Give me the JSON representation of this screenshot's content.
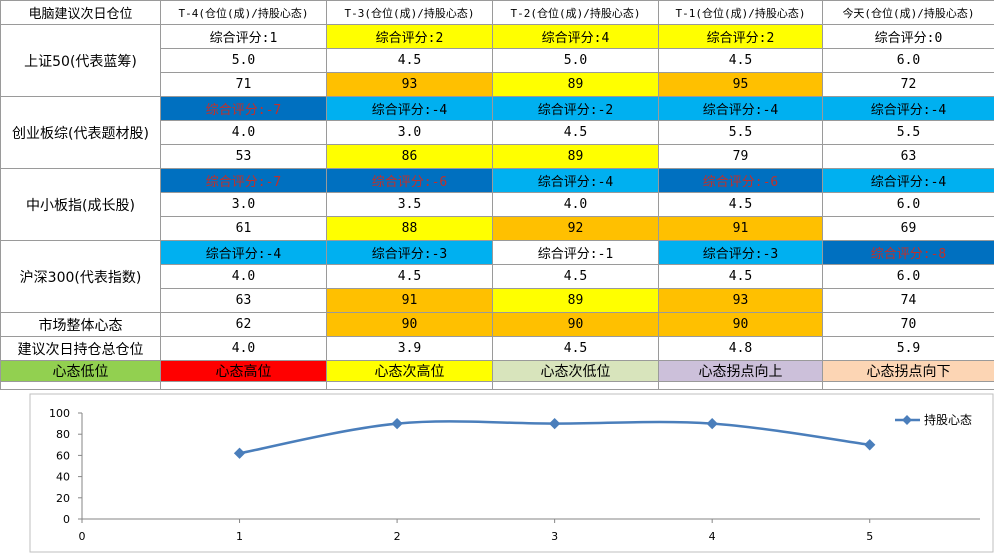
{
  "table": {
    "corner": "电脑建议次日仓位",
    "headers": [
      "T-4(仓位(成)/持股心态)",
      "T-3(仓位(成)/持股心态)",
      "T-2(仓位(成)/持股心态)",
      "T-1(仓位(成)/持股心态)",
      "今天(仓位(成)/持股心态)"
    ],
    "groups": [
      {
        "label": "上证50(代表蓝筹)",
        "score": [
          "综合评分:1",
          "综合评分:2",
          "综合评分:4",
          "综合评分:2",
          "综合评分:0"
        ],
        "score_bg": [
          "#ffffff",
          "#ffff00",
          "#ffff00",
          "#ffff00",
          "#ffffff"
        ],
        "score_color": [
          "#000000",
          "#000000",
          "#000000",
          "#000000",
          "#000000"
        ],
        "position": [
          "5.0",
          "4.5",
          "5.0",
          "4.5",
          "6.0"
        ],
        "mood": [
          "71",
          "93",
          "89",
          "95",
          "72"
        ],
        "mood_bg": [
          "#ffffff",
          "#ffc000",
          "#ffff00",
          "#ffc000",
          "#ffffff"
        ]
      },
      {
        "label": "创业板综(代表题材股)",
        "score": [
          "综合评分:-7",
          "综合评分:-4",
          "综合评分:-2",
          "综合评分:-4",
          "综合评分:-4"
        ],
        "score_bg": [
          "#0070c0",
          "#00b0f0",
          "#00b0f0",
          "#00b0f0",
          "#00b0f0"
        ],
        "score_color": [
          "#c0302a",
          "#000000",
          "#000000",
          "#000000",
          "#000000"
        ],
        "position": [
          "4.0",
          "3.0",
          "4.5",
          "5.5",
          "5.5"
        ],
        "mood": [
          "53",
          "86",
          "89",
          "79",
          "63"
        ],
        "mood_bg": [
          "#ffffff",
          "#ffff00",
          "#ffff00",
          "#ffffff",
          "#ffffff"
        ]
      },
      {
        "label": "中小板指(成长股)",
        "score": [
          "综合评分:-7",
          "综合评分:-6",
          "综合评分:-4",
          "综合评分:-6",
          "综合评分:-4"
        ],
        "score_bg": [
          "#0070c0",
          "#0070c0",
          "#00b0f0",
          "#0070c0",
          "#00b0f0"
        ],
        "score_color": [
          "#c0302a",
          "#c0302a",
          "#000000",
          "#c0302a",
          "#000000"
        ],
        "position": [
          "3.0",
          "3.5",
          "4.0",
          "4.5",
          "6.0"
        ],
        "mood": [
          "61",
          "88",
          "92",
          "91",
          "69"
        ],
        "mood_bg": [
          "#ffffff",
          "#ffff00",
          "#ffc000",
          "#ffc000",
          "#ffffff"
        ]
      },
      {
        "label": "沪深300(代表指数)",
        "score": [
          "综合评分:-4",
          "综合评分:-3",
          "综合评分:-1",
          "综合评分:-3",
          "综合评分:-8"
        ],
        "score_bg": [
          "#00b0f0",
          "#00b0f0",
          "#ffffff",
          "#00b0f0",
          "#0070c0"
        ],
        "score_color": [
          "#000000",
          "#000000",
          "#000000",
          "#000000",
          "#c0302a"
        ],
        "position": [
          "4.0",
          "4.5",
          "4.5",
          "4.5",
          "6.0"
        ],
        "mood": [
          "63",
          "91",
          "89",
          "93",
          "74"
        ],
        "mood_bg": [
          "#ffffff",
          "#ffc000",
          "#ffff00",
          "#ffc000",
          "#ffffff"
        ]
      }
    ],
    "overall": {
      "label": "市场整体心态",
      "values": [
        "62",
        "90",
        "90",
        "90",
        "70"
      ],
      "bg": [
        "#ffffff",
        "#ffc000",
        "#ffc000",
        "#ffc000",
        "#ffffff"
      ]
    },
    "suggest": {
      "label": "建议次日持仓总仓位",
      "values": [
        "4.0",
        "3.9",
        "4.5",
        "4.8",
        "5.9"
      ]
    },
    "legend": [
      {
        "label": "心态低位",
        "bg": "#92d050"
      },
      {
        "label": "心态高位",
        "bg": "#ff0000"
      },
      {
        "label": "心态次高位",
        "bg": "#ffff00"
      },
      {
        "label": "心态次低位",
        "bg": "#d8e4bc"
      },
      {
        "label": "心态拐点向上",
        "bg": "#ccc0da"
      },
      {
        "label": "心态拐点向下",
        "bg": "#fcd5b4"
      }
    ]
  },
  "chart_data": {
    "type": "line",
    "x": [
      1,
      2,
      3,
      4,
      5
    ],
    "series": [
      {
        "name": "持股心态",
        "values": [
          62,
          90,
          90,
          90,
          70
        ],
        "color": "#4a7ebb"
      }
    ],
    "xlim": [
      0,
      5.7
    ],
    "ylim": [
      0,
      100
    ],
    "yticks": [
      0,
      20,
      40,
      60,
      80,
      100
    ],
    "xticks": [
      0,
      1,
      2,
      3,
      4,
      5
    ],
    "legend": "top-right",
    "grid": false
  }
}
